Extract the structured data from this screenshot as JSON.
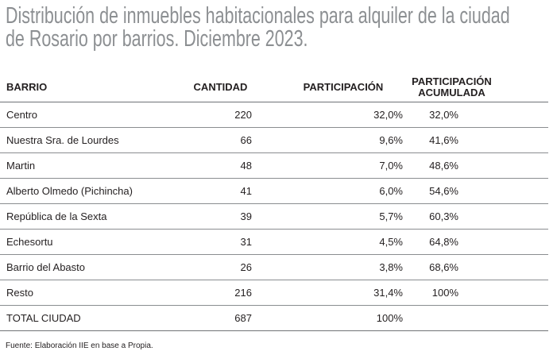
{
  "title_lines": [
    "Distribución de inmuebles habitacionales para alquiler de la ciudad",
    "de Rosario por barrios. Diciembre 2023."
  ],
  "chart_data": {
    "type": "table",
    "columns": [
      "BARRIO",
      "CANTIDAD",
      "PARTICIPACIÓN",
      "PARTICIPACIÓN ACUMULADA"
    ],
    "header": {
      "barrio": "BARRIO",
      "cantidad": "CANTIDAD",
      "participacion": "PARTICIPACIÓN",
      "acumulada_line1": "PARTICIPACIÓN",
      "acumulada_line2": "ACUMULADA"
    },
    "rows": [
      {
        "barrio": "Centro",
        "cantidad": "220",
        "participacion": "32,0%",
        "acumulada": "32,0%"
      },
      {
        "barrio": "Nuestra Sra. de Lourdes",
        "cantidad": "66",
        "participacion": "9,6%",
        "acumulada": "41,6%"
      },
      {
        "barrio": "Martin",
        "cantidad": "48",
        "participacion": "7,0%",
        "acumulada": "48,6%"
      },
      {
        "barrio": "Alberto Olmedo (Pichincha)",
        "cantidad": "41",
        "participacion": "6,0%",
        "acumulada": "54,6%"
      },
      {
        "barrio": "República de la Sexta",
        "cantidad": "39",
        "participacion": "5,7%",
        "acumulada": "60,3%"
      },
      {
        "barrio": "Echesortu",
        "cantidad": "31",
        "participacion": "4,5%",
        "acumulada": "64,8%"
      },
      {
        "barrio": "Barrio del Abasto",
        "cantidad": "26",
        "participacion": "3,8%",
        "acumulada": "68,6%"
      },
      {
        "barrio": "Resto",
        "cantidad": "216",
        "participacion": "31,4%",
        "acumulada": "100%"
      },
      {
        "barrio": "TOTAL CIUDAD",
        "cantidad": "687",
        "participacion": "100%",
        "acumulada": ""
      }
    ]
  },
  "source": "Fuente: Elaboración IIE en base a Propia.",
  "colors": {
    "title": "#8c8f92",
    "text": "#231f20",
    "rule": "#8a8d90"
  }
}
